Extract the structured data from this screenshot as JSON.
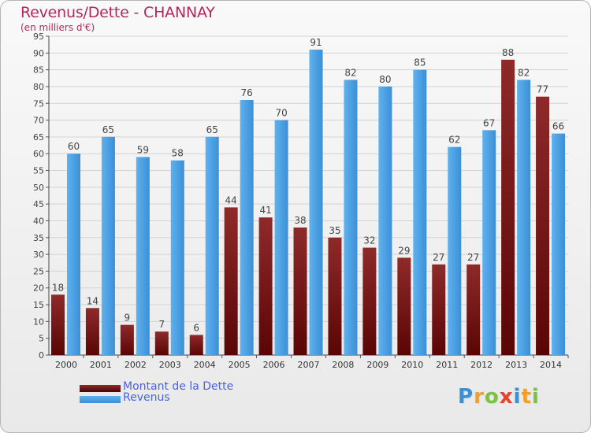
{
  "header": {
    "title": "Revenus/Dette - CHANNAY",
    "subtitle": "(en milliers d'€)"
  },
  "colors": {
    "dette": "#7a1a1a",
    "revenus": "#4aa0e2",
    "title": "#b1295c",
    "legend_text": "#4a62e0"
  },
  "legend": {
    "items": [
      {
        "label": "Montant de la Dette",
        "color": "#6b0e0e"
      },
      {
        "label": "Revenus",
        "color": "#4aa0e2"
      }
    ]
  },
  "logo": {
    "text": "Proxiti",
    "letters": [
      {
        "char": "P",
        "color": "#3b8fd4"
      },
      {
        "char": "r",
        "color": "#f0a02a"
      },
      {
        "char": "o",
        "color": "#7cc242"
      },
      {
        "char": "x",
        "color": "#e8412c"
      },
      {
        "char": "i",
        "color": "#3b8fd4"
      },
      {
        "char": "t",
        "color": "#f0a02a"
      },
      {
        "char": "i",
        "color": "#7cc242"
      }
    ]
  },
  "chart_data": {
    "type": "bar",
    "title": "Revenus/Dette - CHANNAY",
    "subtitle": "(en milliers d'€)",
    "xlabel": "",
    "ylabel": "",
    "ylim": [
      0,
      95
    ],
    "yticks": [
      0,
      5,
      10,
      15,
      20,
      25,
      30,
      35,
      40,
      45,
      50,
      55,
      60,
      65,
      70,
      75,
      80,
      85,
      90,
      95
    ],
    "grid": true,
    "legend_position": "bottom-left",
    "categories": [
      "2000",
      "2001",
      "2002",
      "2003",
      "2004",
      "2005",
      "2006",
      "2007",
      "2008",
      "2009",
      "2010",
      "2011",
      "2012",
      "2013",
      "2014"
    ],
    "series": [
      {
        "name": "Montant de la Dette",
        "color": "#7a1a1a",
        "values": [
          18,
          14,
          9,
          7,
          6,
          44,
          41,
          38,
          35,
          32,
          29,
          27,
          27,
          88,
          77
        ]
      },
      {
        "name": "Revenus",
        "color": "#4aa0e2",
        "values": [
          60,
          65,
          59,
          58,
          65,
          76,
          70,
          91,
          82,
          80,
          85,
          62,
          67,
          82,
          66
        ]
      }
    ]
  }
}
